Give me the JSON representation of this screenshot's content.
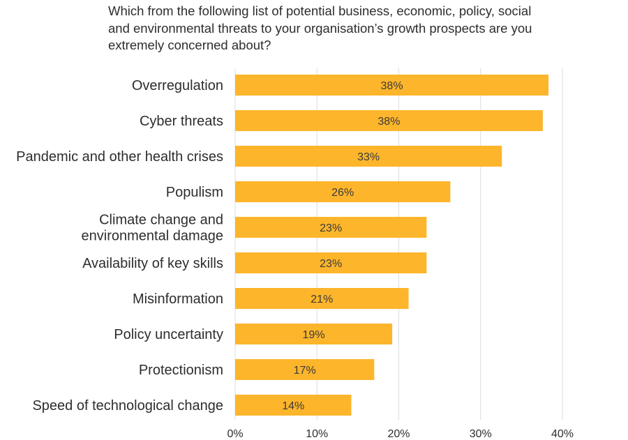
{
  "chart_data": {
    "type": "bar",
    "orientation": "horizontal",
    "title": "Which from the following list of potential business, economic, policy, social and environmental threats to your organisation’s growth prospects are you extremely concerned about?",
    "categories": [
      [
        "Overregulation"
      ],
      [
        "Cyber threats"
      ],
      [
        "Pandemic and other health crises"
      ],
      [
        "Populism"
      ],
      [
        "Climate change and",
        "environmental damage"
      ],
      [
        "Availability of key skills"
      ],
      [
        "Misinformation"
      ],
      [
        "Policy uncertainty"
      ],
      [
        "Protectionism"
      ],
      [
        "Speed of technological change"
      ]
    ],
    "values": [
      38.3,
      37.6,
      32.6,
      26.3,
      23.4,
      23.4,
      21.2,
      19.2,
      17.0,
      14.2
    ],
    "value_labels": [
      "38%",
      "38%",
      "33%",
      "26%",
      "23%",
      "23%",
      "21%",
      "19%",
      "17%",
      "14%"
    ],
    "xlim": [
      0,
      40
    ],
    "xticks": [
      0,
      10,
      20,
      30,
      40
    ],
    "xtick_labels": [
      "0%",
      "10%",
      "20%",
      "30%",
      "40%"
    ],
    "grid": true,
    "bar_color": "#FDB52B",
    "xlabel": "",
    "ylabel": ""
  }
}
